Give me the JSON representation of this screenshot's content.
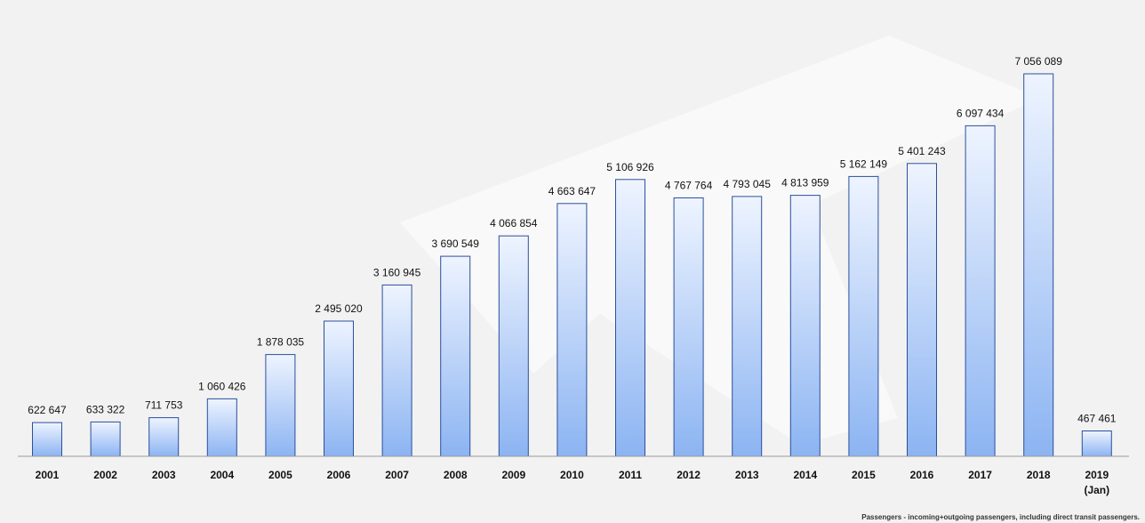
{
  "chart_data": {
    "type": "bar",
    "categories": [
      "2001",
      "2002",
      "2003",
      "2004",
      "2005",
      "2006",
      "2007",
      "2008",
      "2009",
      "2010",
      "2011",
      "2012",
      "2013",
      "2014",
      "2015",
      "2016",
      "2017",
      "2018",
      "2019"
    ],
    "category_sublabels": [
      "",
      "",
      "",
      "",
      "",
      "",
      "",
      "",
      "",
      "",
      "",
      "",
      "",
      "",
      "",
      "",
      "",
      "",
      "(Jan)"
    ],
    "values": [
      622647,
      633322,
      711753,
      1060426,
      1878035,
      2495020,
      3160945,
      3690549,
      4066854,
      4663647,
      5106926,
      4767764,
      4793045,
      4813959,
      5162149,
      5401243,
      6097434,
      7056089,
      467461
    ],
    "value_labels": [
      "622 647",
      "633 322",
      "711 753",
      "1 060 426",
      "1 878 035",
      "2 495 020",
      "3 160 945",
      "3 690 549",
      "4 066 854",
      "4 663 647",
      "5 106 926",
      "4 767 764",
      "4 793 045",
      "4 813 959",
      "5 162 149",
      "5 401 243",
      "6 097 434",
      "7 056 089",
      "467 461"
    ],
    "ylim": [
      0,
      7200000
    ],
    "grid": false,
    "legend": "none"
  },
  "footnote": "Passengers  - incoming+outgoing passengers, including direct transit passengers.",
  "colors": {
    "bar_top": "#eef4ff",
    "bar_bottom": "#8cb4f2",
    "bar_stroke": "#2b4f9e",
    "axis": "#9a9a9a",
    "text": "#111111"
  }
}
